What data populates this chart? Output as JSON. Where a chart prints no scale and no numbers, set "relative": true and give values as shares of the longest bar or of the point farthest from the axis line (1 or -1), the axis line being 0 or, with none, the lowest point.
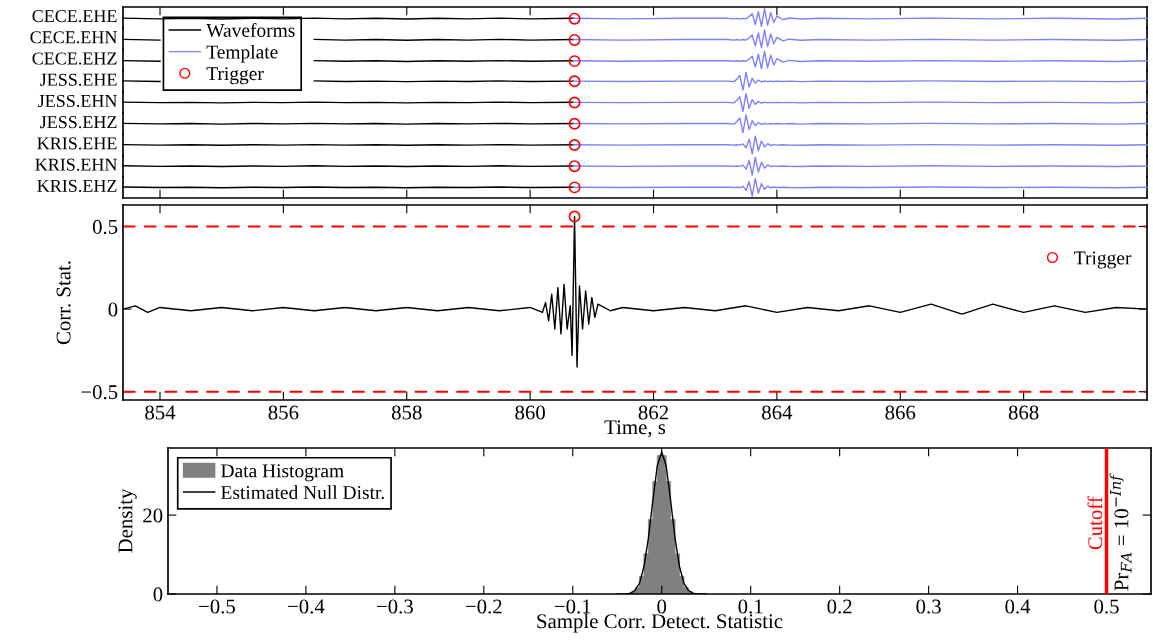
{
  "chart_data": [
    {
      "type": "line",
      "relative": true,
      "ylabel": "CECE.EHE",
      "xlim": [
        853.4,
        870
      ],
      "xticks": [
        854,
        856,
        858,
        860,
        862,
        864,
        866,
        868
      ],
      "tick_labels": false,
      "series": [
        {
          "color": "#000000",
          "x": [
            853.4,
            854,
            854.5,
            855,
            855.5,
            856,
            856.5,
            857,
            857.5,
            858,
            858.5,
            859,
            859.5,
            860,
            860.7
          ],
          "values": [
            0.47,
            0.43,
            0.46,
            0.42,
            0.46,
            0.43,
            0.47,
            0.43,
            0.46,
            0.42,
            0.46,
            0.43,
            0.47,
            0.43,
            0.46
          ]
        },
        {
          "color": "#7f7fff",
          "x": [
            860.7,
            861.5,
            862.5,
            863.2,
            863.3,
            863.35,
            863.4,
            863.45,
            863.5,
            863.55,
            863.6,
            863.65,
            863.7,
            863.75,
            863.8,
            863.85,
            863.9,
            863.95,
            864.0,
            864.1,
            864.2,
            864.4,
            864.7,
            865.5,
            866.5,
            867.5,
            868.5,
            869.5,
            870
          ],
          "values": [
            0.46,
            0.43,
            0.46,
            0.46,
            0.43,
            0.46,
            0.43,
            0.46,
            0.43,
            0.56,
            0.72,
            0.11,
            0.83,
            0,
            1,
            0.06,
            0.78,
            0.22,
            0.58,
            0.38,
            0.48,
            0.42,
            0.46,
            0.43,
            0.47,
            0.43,
            0.46,
            0.42,
            0.46
          ]
        },
        {
          "type": "scatter",
          "marker": "circle",
          "color": "#ff0000",
          "x": [
            860.72
          ],
          "values": [
            0.44
          ]
        }
      ]
    },
    {
      "type": "line",
      "relative": true,
      "ylabel": "CECE.EHN",
      "xlim": [
        853.4,
        870
      ],
      "tick_labels": false,
      "series": [
        {
          "color": "#000000",
          "x": [
            853.4,
            854,
            854.5,
            855,
            855.5,
            856,
            856.5,
            857,
            857.5,
            858,
            858.5,
            859,
            859.5,
            860,
            860.7
          ],
          "values": [
            0.47,
            0.43,
            null,
            null,
            null,
            null,
            0.47,
            0.43,
            0.46,
            0.42,
            0.46,
            0.43,
            0.47,
            0.43,
            0.46
          ]
        },
        {
          "color": "#7f7fff",
          "x": [
            860.7,
            861.5,
            862.5,
            863.2,
            863.3,
            863.35,
            863.4,
            863.45,
            863.5,
            863.55,
            863.6,
            863.65,
            863.7,
            863.75,
            863.8,
            863.85,
            863.9,
            863.95,
            864.0,
            864.1,
            864.2,
            864.4,
            864.7,
            865.5,
            866.5,
            867.5,
            868.5,
            869.5,
            870
          ],
          "values": [
            0.46,
            0.43,
            0.46,
            0.46,
            0.43,
            0.46,
            0.43,
            0.46,
            0.43,
            0.56,
            0.72,
            0.11,
            0.83,
            0,
            1,
            0.06,
            0.78,
            0.22,
            0.58,
            0.38,
            0.48,
            0.42,
            0.46,
            0.43,
            0.47,
            0.43,
            0.46,
            0.42,
            0.46
          ]
        },
        {
          "type": "scatter",
          "marker": "circle",
          "color": "#ff0000",
          "x": [
            860.72
          ],
          "values": [
            0.44
          ]
        }
      ]
    },
    {
      "type": "line",
      "relative": true,
      "ylabel": "CECE.EHZ",
      "xlim": [
        853.4,
        870
      ],
      "tick_labels": false,
      "legend": "left",
      "series": [
        {
          "name": "Waveforms",
          "color": "#000000",
          "x": [
            853.4,
            854,
            854.5,
            855,
            855.5,
            856,
            856.5,
            857,
            857.5,
            858,
            858.5,
            859,
            859.5,
            860,
            860.7
          ],
          "values": [
            0.47,
            0.43,
            null,
            null,
            null,
            null,
            0.47,
            0.43,
            0.46,
            0.42,
            0.46,
            0.43,
            0.47,
            0.43,
            0.46
          ]
        },
        {
          "name": "Template",
          "color": "#7f7fff",
          "x": [
            860.7,
            861.5,
            862.5,
            863.2,
            863.3,
            863.35,
            863.4,
            863.45,
            863.5,
            863.55,
            863.6,
            863.65,
            863.7,
            863.75,
            863.8,
            863.85,
            863.9,
            863.95,
            864.0,
            864.1,
            864.2,
            864.4,
            864.7,
            865.5,
            866.5,
            867.5,
            868.5,
            869.5,
            870
          ],
          "values": [
            0.46,
            0.43,
            0.46,
            0.46,
            0.43,
            0.46,
            0.43,
            0.46,
            0.43,
            0.56,
            0.72,
            0.11,
            0.83,
            0,
            1,
            0.06,
            0.78,
            0.22,
            0.58,
            0.38,
            0.48,
            0.42,
            0.46,
            0.43,
            0.47,
            0.43,
            0.46,
            0.42,
            0.46
          ]
        },
        {
          "name": "Trigger",
          "type": "scatter",
          "marker": "circle",
          "color": "#ff0000",
          "x": [
            860.72
          ],
          "values": [
            0.44
          ]
        }
      ]
    },
    {
      "type": "line",
      "relative": true,
      "ylabel": "JESS.EHE",
      "xlim": [
        853.4,
        870
      ],
      "tick_labels": false,
      "series": [
        {
          "color": "#000000",
          "x": [
            853.4,
            854,
            854.5,
            855,
            855.5,
            856,
            856.5,
            857,
            857.5,
            858,
            858.5,
            859,
            859.5,
            860,
            860.7
          ],
          "values": [
            0.52,
            0.49,
            null,
            null,
            null,
            null,
            0.52,
            0.49,
            0.51,
            0.48,
            0.51,
            0.49,
            0.52,
            0.49,
            0.51
          ]
        },
        {
          "color": "#7f7fff",
          "x": [
            860.7,
            861.5,
            862.5,
            863.2,
            863.3,
            863.35,
            863.4,
            863.45,
            863.5,
            863.55,
            863.6,
            863.65,
            863.7,
            863.75,
            863.8,
            863.85,
            863.9,
            863.95,
            864.0,
            864.1,
            864.2,
            864.4,
            864.7,
            865.5,
            866.5,
            867.5,
            868.5,
            869.5,
            870
          ],
          "values": [
            0.51,
            0.49,
            0.51,
            0.51,
            0.48,
            0.61,
            0.83,
            0,
            1,
            0.17,
            0.67,
            0.39,
            0.57,
            0.46,
            0.52,
            0.48,
            0.51,
            0.49,
            0.51,
            0.49,
            0.51,
            0.48,
            0.51,
            0.49,
            0.52,
            0.49,
            0.51,
            0.48,
            0.51
          ]
        },
        {
          "type": "scatter",
          "marker": "circle",
          "color": "#ff0000",
          "x": [
            860.72
          ],
          "values": [
            0.5
          ]
        }
      ]
    },
    {
      "type": "line",
      "relative": true,
      "ylabel": "JESS.EHN",
      "xlim": [
        853.4,
        870
      ],
      "tick_labels": false,
      "series": [
        {
          "color": "#000000",
          "x": [
            853.4,
            854,
            854.5,
            855,
            855.5,
            856,
            856.5,
            857,
            857.5,
            858,
            858.5,
            859,
            859.5,
            860,
            860.7
          ],
          "values": [
            0.52,
            0.49,
            0.51,
            0.48,
            0.51,
            0.49,
            0.52,
            0.49,
            0.51,
            0.48,
            0.51,
            0.49,
            0.52,
            0.49,
            0.51
          ]
        },
        {
          "color": "#7f7fff",
          "x": [
            860.7,
            861.5,
            862.5,
            863.2,
            863.3,
            863.35,
            863.4,
            863.45,
            863.5,
            863.55,
            863.6,
            863.65,
            863.7,
            863.75,
            863.8,
            863.85,
            863.9,
            863.95,
            864.0,
            864.1,
            864.2,
            864.4,
            864.7,
            865.5,
            866.5,
            867.5,
            868.5,
            869.5,
            870
          ],
          "values": [
            0.51,
            0.49,
            0.51,
            0.51,
            0.48,
            0.61,
            0.83,
            0,
            1,
            0.17,
            0.67,
            0.39,
            0.57,
            0.46,
            0.52,
            0.48,
            0.51,
            0.49,
            0.51,
            0.49,
            0.51,
            0.48,
            0.51,
            0.49,
            0.52,
            0.49,
            0.51,
            0.48,
            0.51
          ]
        },
        {
          "type": "scatter",
          "marker": "circle",
          "color": "#ff0000",
          "x": [
            860.72
          ],
          "values": [
            0.5
          ]
        }
      ]
    },
    {
      "type": "line",
      "relative": true,
      "ylabel": "JESS.EHZ",
      "xlim": [
        853.4,
        870
      ],
      "tick_labels": false,
      "series": [
        {
          "color": "#000000",
          "x": [
            853.4,
            854,
            854.5,
            855,
            855.5,
            856,
            856.5,
            857,
            857.5,
            858,
            858.5,
            859,
            859.5,
            860,
            860.7
          ],
          "values": [
            0.52,
            0.49,
            0.51,
            0.48,
            0.51,
            0.49,
            0.52,
            0.49,
            0.51,
            0.48,
            0.51,
            0.49,
            0.52,
            0.49,
            0.51
          ]
        },
        {
          "color": "#7f7fff",
          "x": [
            860.7,
            861.5,
            862.5,
            863.2,
            863.3,
            863.35,
            863.4,
            863.45,
            863.5,
            863.55,
            863.6,
            863.65,
            863.7,
            863.75,
            863.8,
            863.85,
            863.9,
            863.95,
            864.0,
            864.1,
            864.2,
            864.4,
            864.7,
            865.5,
            866.5,
            867.5,
            868.5,
            869.5,
            870
          ],
          "values": [
            0.51,
            0.49,
            0.51,
            0.51,
            0.48,
            0.61,
            0.83,
            0,
            1,
            0.17,
            0.67,
            0.39,
            0.57,
            0.46,
            0.52,
            0.48,
            0.51,
            0.49,
            0.51,
            0.49,
            0.51,
            0.48,
            0.51,
            0.49,
            0.52,
            0.49,
            0.51,
            0.48,
            0.51
          ]
        },
        {
          "type": "scatter",
          "marker": "circle",
          "color": "#ff0000",
          "x": [
            860.72
          ],
          "values": [
            0.5
          ]
        }
      ]
    },
    {
      "type": "line",
      "relative": true,
      "ylabel": "KRIS.EHE",
      "xlim": [
        853.4,
        870
      ],
      "tick_labels": false,
      "series": [
        {
          "color": "#000000",
          "x": [
            853.4,
            854,
            854.5,
            855,
            855.5,
            856,
            856.5,
            857,
            857.5,
            858,
            858.5,
            859,
            859.5,
            860,
            860.7
          ],
          "values": [
            0.52,
            0.49,
            0.51,
            0.48,
            0.51,
            0.49,
            0.52,
            0.49,
            0.51,
            0.48,
            0.51,
            0.49,
            0.52,
            0.49,
            0.51
          ]
        },
        {
          "color": "#7f7fff",
          "x": [
            860.7,
            861.5,
            862.5,
            863.2,
            863.3,
            863.35,
            863.4,
            863.45,
            863.5,
            863.55,
            863.6,
            863.65,
            863.7,
            863.75,
            863.8,
            863.85,
            863.9,
            863.95,
            864.0,
            864.1,
            864.2,
            864.4,
            864.7,
            865.5,
            866.5,
            867.5,
            868.5,
            869.5,
            870
          ],
          "values": [
            0.51,
            0.49,
            0.51,
            0.51,
            0.49,
            0.51,
            0.49,
            0.56,
            0.33,
            0.83,
            0,
            1,
            0.17,
            0.72,
            0.39,
            0.57,
            0.47,
            0.52,
            0.49,
            0.51,
            0.49,
            0.48,
            0.51,
            0.49,
            0.52,
            0.49,
            0.51,
            0.48,
            0.51
          ]
        },
        {
          "type": "scatter",
          "marker": "circle",
          "color": "#ff0000",
          "x": [
            860.72
          ],
          "values": [
            0.5
          ]
        }
      ]
    },
    {
      "type": "line",
      "relative": true,
      "ylabel": "KRIS.EHN",
      "xlim": [
        853.4,
        870
      ],
      "tick_labels": false,
      "series": [
        {
          "color": "#000000",
          "x": [
            853.4,
            854,
            854.5,
            855,
            855.5,
            856,
            856.5,
            857,
            857.5,
            858,
            858.5,
            859,
            859.5,
            860,
            860.7
          ],
          "values": [
            0.52,
            0.49,
            0.51,
            0.48,
            0.51,
            0.49,
            0.52,
            0.49,
            0.51,
            0.48,
            0.51,
            0.49,
            0.52,
            0.49,
            0.51
          ]
        },
        {
          "color": "#7f7fff",
          "x": [
            860.7,
            861.5,
            862.5,
            863.2,
            863.3,
            863.35,
            863.4,
            863.45,
            863.5,
            863.55,
            863.6,
            863.65,
            863.7,
            863.75,
            863.8,
            863.85,
            863.9,
            863.95,
            864.0,
            864.1,
            864.2,
            864.4,
            864.7,
            865.5,
            866.5,
            867.5,
            868.5,
            869.5,
            870
          ],
          "values": [
            0.51,
            0.49,
            0.51,
            0.51,
            0.49,
            0.51,
            0.49,
            0.56,
            0.33,
            0.83,
            0,
            1,
            0.17,
            0.72,
            0.39,
            0.57,
            0.47,
            0.52,
            0.49,
            0.51,
            0.49,
            0.48,
            0.51,
            0.49,
            0.52,
            0.49,
            0.51,
            0.48,
            0.51
          ]
        },
        {
          "type": "scatter",
          "marker": "circle",
          "color": "#ff0000",
          "x": [
            860.72
          ],
          "values": [
            0.5
          ]
        }
      ]
    },
    {
      "type": "line",
      "relative": true,
      "ylabel": "KRIS.EHZ",
      "xlim": [
        853.4,
        870
      ],
      "xticks": [
        854,
        856,
        858,
        860,
        862,
        864,
        866,
        868
      ],
      "tick_labels": false,
      "series": [
        {
          "color": "#000000",
          "x": [
            853.4,
            854,
            854.5,
            855,
            855.5,
            856,
            856.5,
            857,
            857.5,
            858,
            858.5,
            859,
            859.5,
            860,
            860.7
          ],
          "values": [
            0.52,
            0.49,
            0.51,
            0.48,
            0.51,
            0.49,
            0.52,
            0.49,
            0.51,
            0.48,
            0.51,
            0.49,
            0.52,
            0.49,
            0.51
          ]
        },
        {
          "color": "#7f7fff",
          "x": [
            860.7,
            861.5,
            862.5,
            863.2,
            863.3,
            863.35,
            863.4,
            863.45,
            863.5,
            863.55,
            863.6,
            863.65,
            863.7,
            863.75,
            863.8,
            863.85,
            863.9,
            863.95,
            864.0,
            864.1,
            864.2,
            864.4,
            864.7,
            865.5,
            866.5,
            867.5,
            868.5,
            869.5,
            870
          ],
          "values": [
            0.51,
            0.49,
            0.51,
            0.51,
            0.49,
            0.51,
            0.49,
            0.56,
            0.33,
            0.83,
            0,
            1,
            0.17,
            0.72,
            0.39,
            0.57,
            0.47,
            0.52,
            0.49,
            0.51,
            0.49,
            0.48,
            0.51,
            0.49,
            0.52,
            0.49,
            0.51,
            0.48,
            0.51
          ]
        },
        {
          "type": "scatter",
          "marker": "circle",
          "color": "#ff0000",
          "x": [
            860.72
          ],
          "values": [
            0.5
          ]
        }
      ]
    },
    {
      "type": "line",
      "ylabel": "Corr. Stat.",
      "xlabel": "Time, s",
      "xlim": [
        853.4,
        870
      ],
      "xticks": [
        854,
        856,
        858,
        860,
        862,
        864,
        866,
        868
      ],
      "ylim": [
        -0.55,
        0.63
      ],
      "yticks": [
        {
          "value": -0.5,
          "label": "−0.5"
        },
        0,
        0.5
      ],
      "legend": "right",
      "ref_lines": [
        {
          "axis": "y",
          "value": 0.5,
          "color": "#ff0000",
          "line_style": "dashed"
        },
        {
          "axis": "y",
          "value": -0.5,
          "color": "#ff0000",
          "line_style": "dashed"
        }
      ],
      "series": [
        {
          "color": "#000000",
          "x": [
            853.4,
            853.6,
            853.8,
            854,
            854.5,
            855,
            855.5,
            856,
            856.5,
            857,
            857.5,
            858,
            858.5,
            859,
            859.5,
            860,
            860.2,
            860.25,
            860.3,
            860.35,
            860.4,
            860.45,
            860.5,
            860.55,
            860.6,
            860.65,
            860.68,
            860.72,
            860.76,
            860.8,
            860.85,
            860.9,
            860.95,
            861.0,
            861.05,
            861.1,
            861.3,
            861.5,
            862,
            862.5,
            863,
            863.5,
            864,
            864.5,
            865,
            865.5,
            866,
            866.5,
            867,
            867.5,
            868,
            868.5,
            869,
            869.5,
            870
          ],
          "values": [
            0,
            0.02,
            -0.02,
            0.01,
            -0.01,
            0.01,
            -0.01,
            0.01,
            -0.01,
            0.01,
            -0.01,
            0.01,
            -0.01,
            0.01,
            -0.01,
            0.01,
            -0.02,
            0.04,
            -0.07,
            0.09,
            -0.12,
            0.13,
            -0.15,
            0.15,
            -0.12,
            0.02,
            -0.28,
            0.56,
            -0.35,
            0.14,
            -0.12,
            0.11,
            -0.09,
            0.07,
            -0.05,
            0.03,
            -0.01,
            0.01,
            -0.01,
            0.01,
            -0.01,
            0.02,
            -0.02,
            0.01,
            -0.01,
            0.02,
            -0.02,
            0.03,
            -0.03,
            0.03,
            -0.02,
            0.02,
            -0.02,
            0.01,
            0
          ]
        },
        {
          "name": "Trigger",
          "type": "scatter",
          "marker": "circle",
          "color": "#ff0000",
          "x": [
            860.72
          ],
          "values": [
            0.56
          ]
        }
      ]
    },
    {
      "type": "histogram",
      "xlabel": "Sample Corr. Detect. Statistic",
      "ylabel": "Density",
      "xlim": [
        -0.555,
        0.55
      ],
      "xticks": [
        {
          "value": -0.5,
          "label": "−0.5"
        },
        {
          "value": -0.4,
          "label": "−0.4"
        },
        {
          "value": -0.3,
          "label": "−0.3"
        },
        {
          "value": -0.2,
          "label": "−0.2"
        },
        {
          "value": -0.1,
          "label": "−0.1"
        },
        0,
        0.1,
        0.2,
        0.3,
        0.4,
        0.5
      ],
      "ylim": [
        0,
        37
      ],
      "yticks": [
        0,
        20
      ],
      "legend": "top left",
      "bins": [
        -0.045,
        -0.04,
        -0.035,
        -0.03,
        -0.025,
        -0.02,
        -0.015,
        -0.01,
        -0.005,
        0,
        0.005,
        0.01,
        0.015,
        0.02,
        0.025,
        0.03,
        0.035,
        0.04,
        0.045
      ],
      "ref_lines": [
        {
          "axis": "x",
          "value": 0.5,
          "label": "Cutoff",
          "color": "#ff0000",
          "line_style": "solid"
        }
      ],
      "annotations": [
        {
          "text": "Pr$_{FA}$ = 10$^{−Inf}$",
          "x": 0.5,
          "y": 0
        }
      ],
      "series": [
        {
          "name": "Data Histogram",
          "color": "#808080",
          "values": [
            0,
            0.1,
            0.5,
            1.6,
            4.5,
            10.2,
            18.9,
            28.5,
            35.1,
            35.1,
            28.5,
            18.9,
            10.2,
            4.5,
            1.6,
            0.5,
            0.1,
            0
          ]
        },
        {
          "name": "Estimated Null Distr.",
          "type": "line",
          "color": "#000000",
          "x": [
            -0.05,
            -0.045,
            -0.04,
            -0.035,
            -0.03,
            -0.025,
            -0.02,
            -0.015,
            -0.01,
            -0.005,
            0,
            0.005,
            0.01,
            0.015,
            0.02,
            0.025,
            0.03,
            0.035,
            0.04,
            0.045,
            0.05
          ],
          "values": [
            0,
            0,
            0,
            0.2,
            0.9,
            2.7,
            6.9,
            14.1,
            23.7,
            32.5,
            36,
            32.5,
            23.7,
            14.1,
            6.9,
            2.7,
            0.9,
            0.2,
            0,
            0,
            0
          ]
        }
      ]
    }
  ]
}
